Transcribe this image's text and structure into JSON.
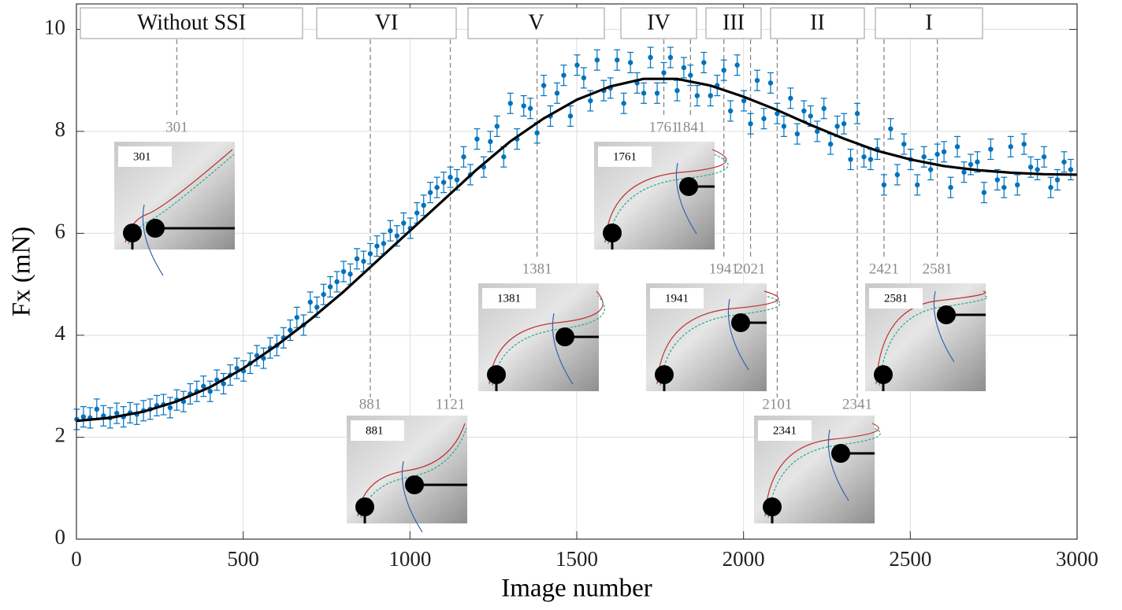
{
  "chart_data": {
    "type": "scatter",
    "xlabel": "Image number",
    "ylabel": "Fx (mN)",
    "xlim": [
      0,
      3000
    ],
    "ylim": [
      0,
      10.5
    ],
    "xticks": [
      0,
      500,
      1000,
      1500,
      2000,
      2500,
      3000
    ],
    "yticks": [
      0,
      2,
      4,
      6,
      8,
      10
    ],
    "grid": true,
    "regions": [
      "Without SSI",
      "VI",
      "V",
      "IV",
      "III",
      "II",
      "I"
    ],
    "markers": [
      301,
      881,
      1121,
      1381,
      1761,
      1841,
      1941,
      2021,
      2101,
      2341,
      2421,
      2581
    ],
    "series": [
      {
        "type": "errorbar",
        "color": "#0072bd",
        "error": 0.2,
        "x": [
          1,
          21,
          41,
          61,
          81,
          101,
          121,
          141,
          161,
          181,
          201,
          221,
          241,
          261,
          281,
          301,
          321,
          341,
          361,
          381,
          401,
          421,
          441,
          461,
          481,
          501,
          521,
          541,
          561,
          581,
          601,
          621,
          641,
          661,
          681,
          701,
          721,
          741,
          761,
          781,
          801,
          821,
          841,
          861,
          881,
          901,
          921,
          941,
          961,
          981,
          1001,
          1021,
          1041,
          1061,
          1081,
          1101,
          1121,
          1141,
          1161,
          1181,
          1201,
          1221,
          1241,
          1261,
          1281,
          1301,
          1321,
          1341,
          1361,
          1381,
          1401,
          1421,
          1441,
          1461,
          1481,
          1501,
          1521,
          1541,
          1561,
          1581,
          1601,
          1621,
          1641,
          1661,
          1681,
          1701,
          1721,
          1741,
          1761,
          1781,
          1801,
          1821,
          1841,
          1861,
          1881,
          1901,
          1921,
          1941,
          1961,
          1981,
          2001,
          2021,
          2041,
          2061,
          2081,
          2101,
          2121,
          2141,
          2161,
          2181,
          2201,
          2221,
          2241,
          2261,
          2281,
          2301,
          2321,
          2341,
          2361,
          2381,
          2401,
          2421,
          2441,
          2461,
          2481,
          2501,
          2521,
          2541,
          2561,
          2581,
          2601,
          2621,
          2641,
          2661,
          2681,
          2701,
          2721,
          2741,
          2761,
          2781,
          2801,
          2821,
          2841,
          2861,
          2881,
          2901,
          2921,
          2941,
          2961,
          2981
        ],
        "values": [
          2.35,
          2.4,
          2.38,
          2.55,
          2.42,
          2.38,
          2.47,
          2.4,
          2.48,
          2.45,
          2.52,
          2.55,
          2.62,
          2.64,
          2.58,
          2.73,
          2.7,
          2.85,
          2.9,
          3.0,
          2.9,
          3.12,
          3.05,
          3.22,
          3.35,
          3.3,
          3.45,
          3.6,
          3.55,
          3.75,
          3.8,
          3.95,
          4.1,
          4.35,
          4.2,
          4.65,
          4.55,
          4.8,
          4.95,
          5.05,
          5.25,
          5.2,
          5.5,
          5.45,
          5.6,
          5.75,
          5.8,
          6.05,
          5.95,
          6.2,
          6.1,
          6.4,
          6.55,
          6.8,
          6.9,
          7.0,
          7.1,
          7.05,
          7.5,
          7.15,
          7.85,
          7.3,
          7.8,
          8.1,
          7.5,
          8.55,
          7.85,
          8.5,
          8.45,
          7.97,
          8.9,
          8.3,
          8.75,
          9.1,
          8.3,
          9.3,
          9.05,
          8.6,
          9.4,
          8.8,
          8.85,
          9.4,
          8.55,
          9.35,
          8.95,
          8.75,
          9.45,
          8.75,
          9.15,
          9.45,
          8.8,
          9.25,
          9.1,
          8.7,
          9.35,
          8.7,
          8.9,
          9.2,
          8.4,
          9.3,
          8.6,
          8.15,
          9.0,
          8.25,
          8.95,
          8.35,
          8.1,
          8.65,
          7.95,
          8.4,
          8.3,
          8.0,
          8.45,
          7.75,
          8.1,
          8.15,
          7.45,
          8.35,
          7.5,
          7.45,
          7.65,
          6.95,
          8.05,
          7.15,
          7.75,
          7.45,
          6.95,
          7.5,
          7.25,
          7.55,
          7.6,
          6.9,
          7.7,
          7.2,
          7.35,
          7.4,
          6.8,
          7.65,
          7.05,
          6.9,
          7.7,
          6.95,
          7.75,
          7.3,
          7.25,
          7.5,
          6.9,
          7.05,
          7.4,
          7.25
        ]
      },
      {
        "type": "line",
        "color": "#000000",
        "x": [
          0,
          100,
          200,
          300,
          400,
          500,
          600,
          700,
          800,
          900,
          1000,
          1100,
          1200,
          1300,
          1400,
          1500,
          1600,
          1700,
          1800,
          1900,
          2000,
          2100,
          2200,
          2300,
          2400,
          2500,
          2600,
          2700,
          2800,
          2900,
          3000
        ],
        "values": [
          2.32,
          2.38,
          2.5,
          2.7,
          2.98,
          3.35,
          3.8,
          4.3,
          4.85,
          5.45,
          6.05,
          6.65,
          7.25,
          7.8,
          8.25,
          8.62,
          8.88,
          9.03,
          9.03,
          8.9,
          8.68,
          8.42,
          8.13,
          7.86,
          7.62,
          7.45,
          7.32,
          7.24,
          7.19,
          7.16,
          7.15
        ]
      }
    ]
  }
}
